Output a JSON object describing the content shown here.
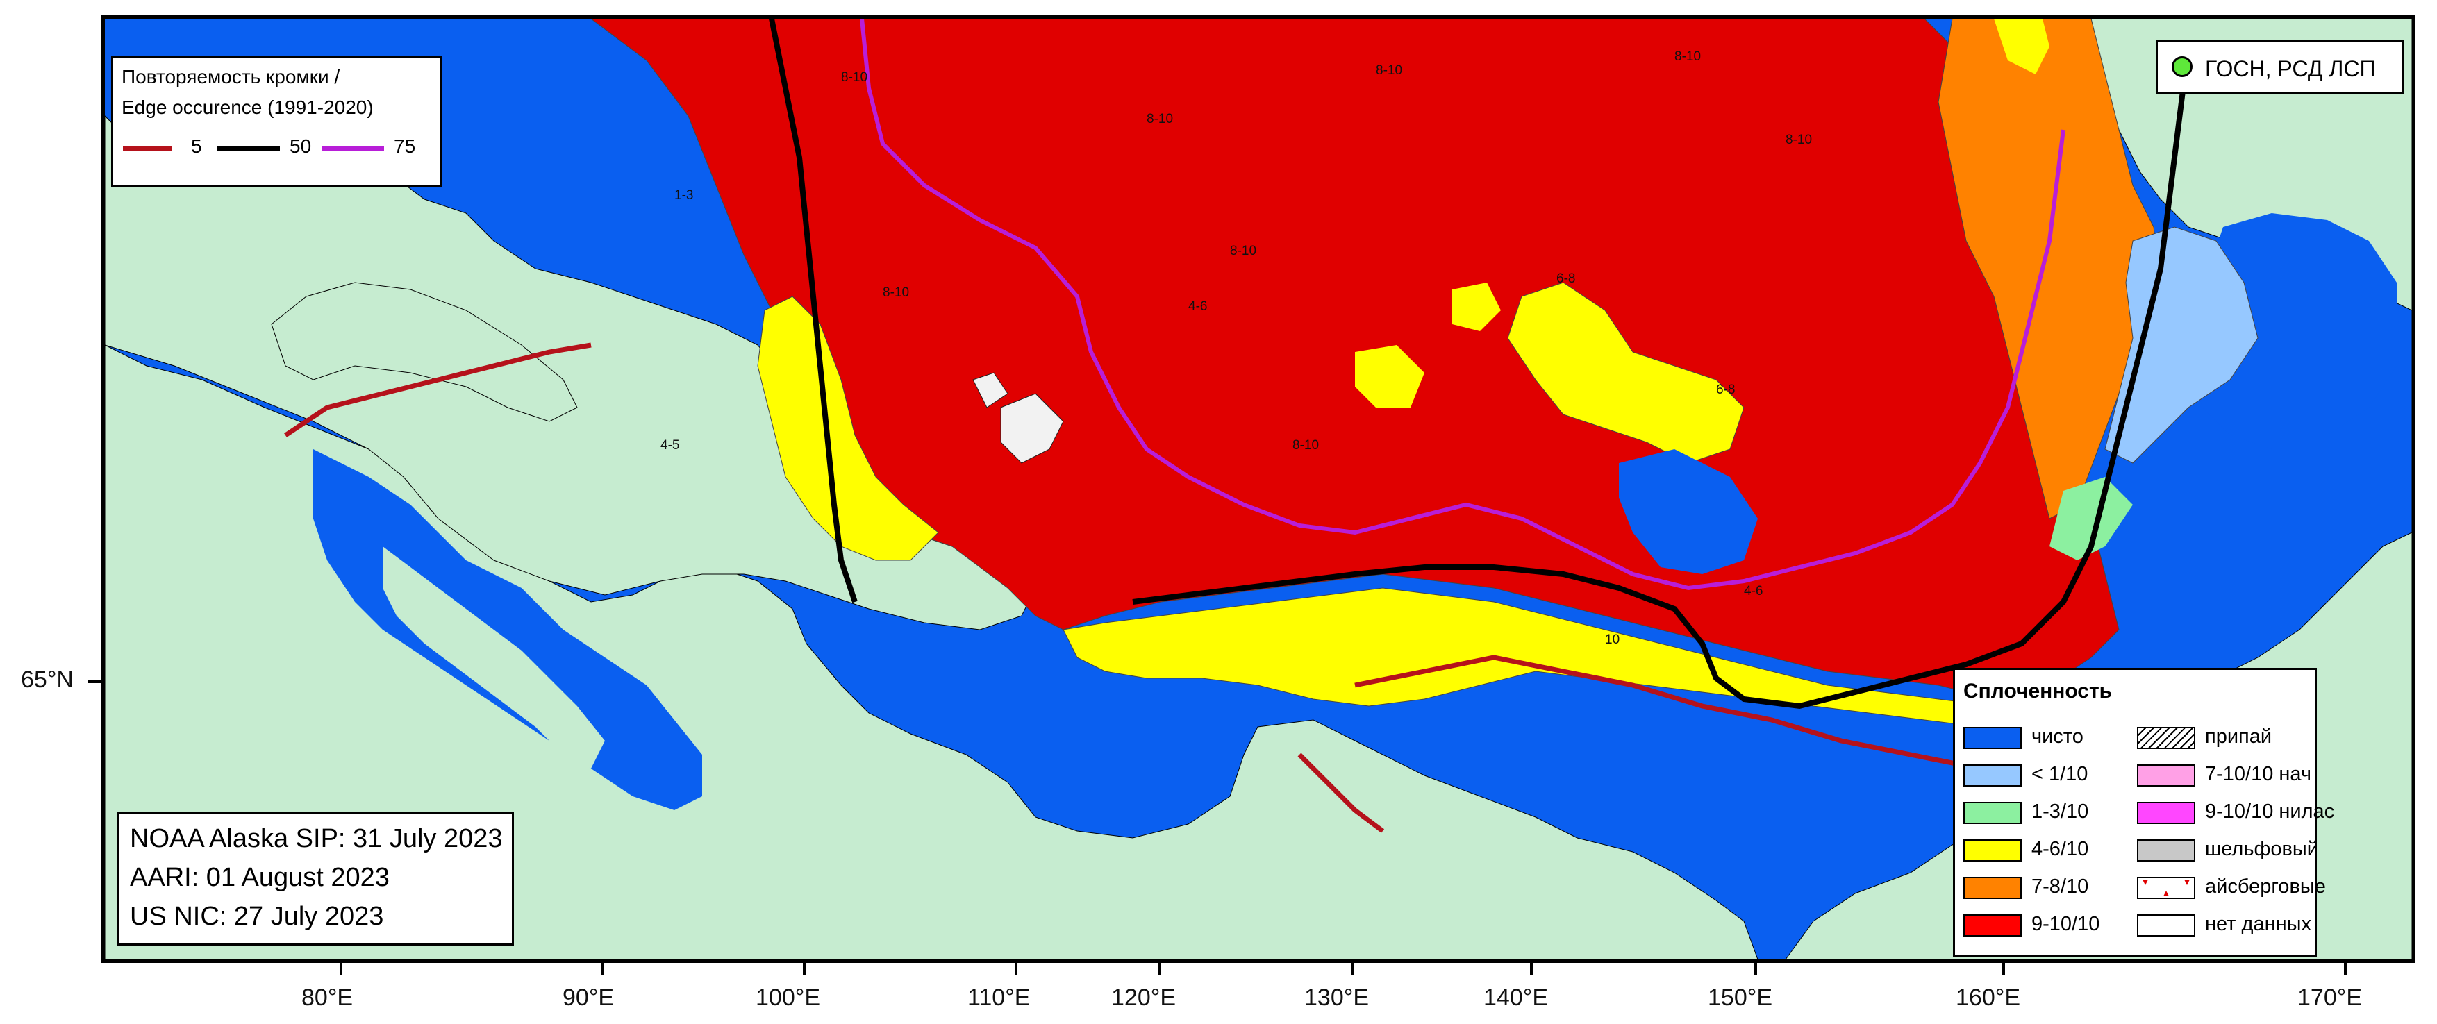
{
  "edge_legend": {
    "title_line1": "Повторяемость кромки /",
    "title_line2": "Edge occurence (1991-2020)",
    "lines": [
      {
        "label": "5",
        "color": "#b5121b"
      },
      {
        "label": "50",
        "color": "#000000"
      },
      {
        "label": "75",
        "color": "#b81ed8"
      }
    ]
  },
  "station_legend": {
    "label": "ГОСН, РСД ЛСП",
    "color": "#5ee83a"
  },
  "sources": {
    "line1": "NOAA Alaska SIP: 31 July 2023",
    "line2": "AARI: 01 August 2023",
    "line3": "US NIC: 27 July 2023"
  },
  "concentration_legend": {
    "title": "Сплоченность",
    "left": [
      {
        "label": "чисто",
        "color": "#0a5ff0"
      },
      {
        "label": "< 1/10",
        "color": "#96c8ff"
      },
      {
        "label": "1-3/10",
        "color": "#8cf0a0"
      },
      {
        "label": "4-6/10",
        "color": "#ffff00"
      },
      {
        "label": "7-8/10",
        "color": "#ff8200"
      },
      {
        "label": "9-10/10",
        "color": "#ff0000"
      }
    ],
    "right": [
      {
        "label": "припай",
        "color": "#ffffff"
      },
      {
        "label": "7-10/10 нач",
        "color": "#ffa0e6"
      },
      {
        "label": "9-10/10 нилас",
        "color": "#ff46ff"
      },
      {
        "label": "шельфовый",
        "color": "#c8c8c8"
      },
      {
        "label": "айсберговые",
        "color": "#ffffff"
      },
      {
        "label": "нет данных",
        "color": "#ffffff"
      }
    ]
  },
  "axes": {
    "y_label": "65°N",
    "x_labels": [
      "80°E",
      "90°E",
      "100°E",
      "110°E",
      "120°E",
      "130°E",
      "140°E",
      "150°E",
      "160°E",
      "170°E"
    ]
  },
  "map_labels": [
    "8-10",
    "6-8",
    "4-6",
    "1-3",
    "4-5",
    "10"
  ],
  "colors": {
    "land": "#c6ecd0",
    "open_water": "#0a5ff0",
    "ice_9_10": "#e00000",
    "ice_4_6": "#ffff00",
    "ice_7_8": "#ff8200"
  }
}
